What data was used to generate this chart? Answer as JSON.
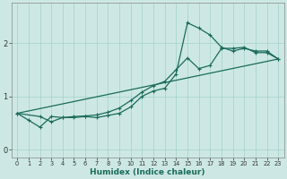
{
  "xlabel": "Humidex (Indice chaleur)",
  "bg_color": "#cde8e4",
  "grid_color": "#a8d4ce",
  "line_color": "#1a6b5a",
  "xlim": [
    -0.5,
    23.5
  ],
  "ylim": [
    -0.15,
    2.75
  ],
  "xticks": [
    0,
    1,
    2,
    3,
    4,
    5,
    6,
    7,
    8,
    9,
    10,
    11,
    12,
    13,
    14,
    15,
    16,
    17,
    18,
    19,
    20,
    21,
    22,
    23
  ],
  "yticks": [
    0,
    1,
    2
  ],
  "line1_x": [
    0,
    1,
    2,
    3,
    4,
    5,
    6,
    7,
    8,
    9,
    10,
    11,
    12,
    13,
    14,
    15,
    16,
    17,
    18,
    19,
    20,
    21,
    22,
    23
  ],
  "line1_y": [
    0.68,
    0.55,
    0.42,
    0.62,
    0.6,
    0.62,
    0.63,
    0.65,
    0.7,
    0.78,
    0.92,
    1.08,
    1.2,
    1.28,
    1.5,
    1.72,
    1.52,
    1.58,
    1.9,
    1.9,
    1.92,
    1.82,
    1.82,
    1.7
  ],
  "line2_x": [
    0,
    2,
    3,
    4,
    5,
    6,
    7,
    8,
    9,
    10,
    11,
    12,
    13,
    14,
    15,
    16,
    17,
    18,
    19,
    20,
    21,
    22,
    23
  ],
  "line2_y": [
    0.68,
    0.62,
    0.52,
    0.6,
    0.6,
    0.62,
    0.6,
    0.64,
    0.68,
    0.8,
    1.0,
    1.1,
    1.15,
    1.42,
    2.38,
    2.28,
    2.15,
    1.92,
    1.85,
    1.9,
    1.85,
    1.85,
    1.7
  ],
  "line3_x": [
    0,
    23
  ],
  "line3_y": [
    0.68,
    1.7
  ],
  "figsize": [
    3.2,
    2.0
  ],
  "dpi": 100
}
